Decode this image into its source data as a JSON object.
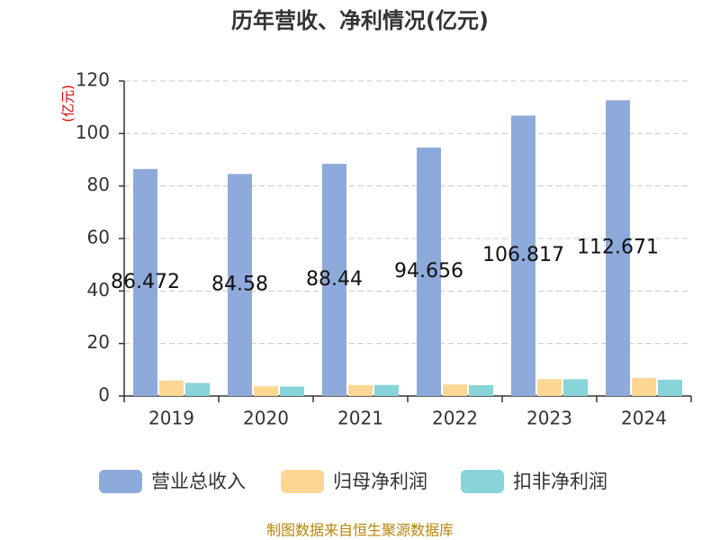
{
  "chart_data": {
    "type": "bar",
    "title": "历年营收、净利情况(亿元)",
    "y_axis_label": "(亿元)",
    "categories": [
      "2019",
      "2020",
      "2021",
      "2022",
      "2023",
      "2024"
    ],
    "series": [
      {
        "name": "营业总收入",
        "color": "#8eaadb",
        "show_labels": true,
        "values": [
          86.472,
          84.58,
          88.44,
          94.656,
          106.817,
          112.671
        ]
      },
      {
        "name": "归母净利润",
        "color": "#ffd794",
        "show_labels": false,
        "values": [
          5.9,
          3.7,
          4.2,
          4.4,
          6.4,
          6.9
        ]
      },
      {
        "name": "扣非净利润",
        "color": "#88d4d8",
        "show_labels": false,
        "values": [
          5.0,
          3.6,
          4.2,
          4.1,
          6.4,
          6.2
        ]
      }
    ],
    "ylim": [
      0,
      120
    ],
    "yticks": [
      0,
      20,
      40,
      60,
      80,
      100,
      120
    ],
    "grid": true,
    "source": "制图数据来自恒生聚源数据库"
  }
}
